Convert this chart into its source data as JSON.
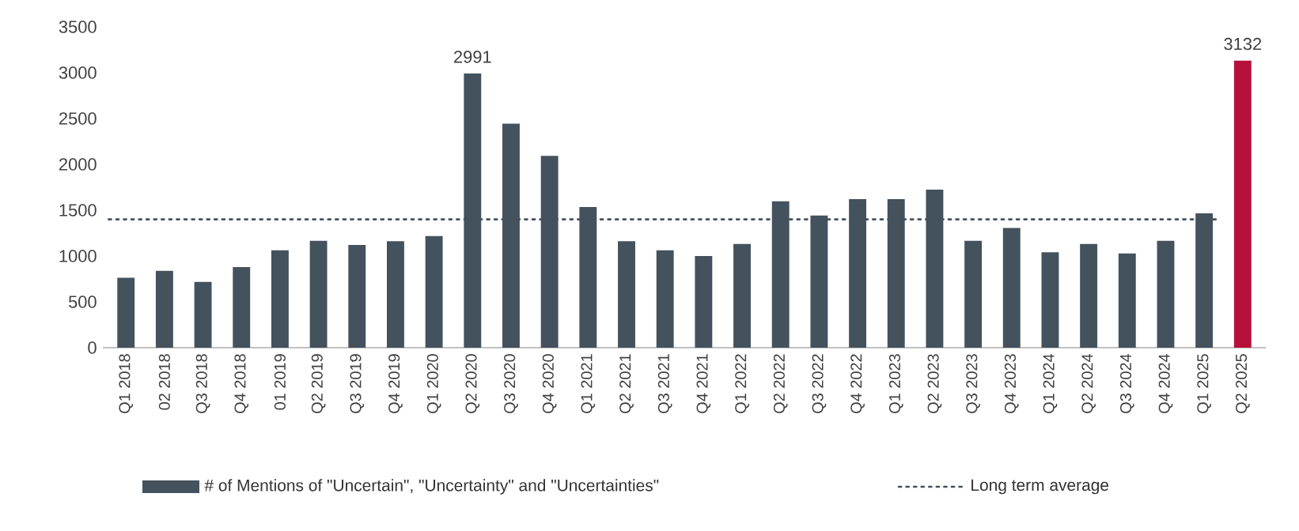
{
  "chart_data": {
    "type": "bar",
    "categories": [
      "Q1 2018",
      "02 2018",
      "Q3 2018",
      "Q4 2018",
      "01 2019",
      "Q2 2019",
      "Q3 2019",
      "Q4 2019",
      "Q1 2020",
      "Q2 2020",
      "Q3 2020",
      "Q4 2020",
      "Q1 2021",
      "Q2 2021",
      "Q3 2021",
      "Q4 2021",
      "Q1 2022",
      "Q2 2022",
      "Q3 2022",
      "Q4 2022",
      "Q1 2023",
      "Q2 2023",
      "Q3 2023",
      "Q4 2023",
      "Q1 2024",
      "Q2 2024",
      "Q3 2024",
      "Q4 2024",
      "Q1 2025",
      "Q2 2025"
    ],
    "series": [
      {
        "name": "# of Mentions of \"Uncertain\", \"Uncertainty\" and \"Uncertainties\"",
        "color": "#44525e",
        "colors": [
          "#44525e",
          "#44525e",
          "#44525e",
          "#44525e",
          "#44525e",
          "#44525e",
          "#44525e",
          "#44525e",
          "#44525e",
          "#44525e",
          "#44525e",
          "#44525e",
          "#44525e",
          "#44525e",
          "#44525e",
          "#44525e",
          "#44525e",
          "#44525e",
          "#44525e",
          "#44525e",
          "#44525e",
          "#44525e",
          "#44525e",
          "#44525e",
          "#44525e",
          "#44525e",
          "#44525e",
          "#44525e",
          "#44525e",
          "#b5103c"
        ],
        "values": [
          764,
          839,
          718,
          879,
          1063,
          1167,
          1121,
          1161,
          1218,
          2991,
          2443,
          2092,
          1534,
          1161,
          1063,
          1000,
          1132,
          1598,
          1442,
          1621,
          1621,
          1724,
          1167,
          1305,
          1040,
          1132,
          1029,
          1167,
          1466,
          3132
        ],
        "value_labels": [
          null,
          null,
          null,
          null,
          null,
          null,
          null,
          null,
          null,
          "2991",
          null,
          null,
          null,
          null,
          null,
          null,
          null,
          null,
          null,
          null,
          null,
          null,
          null,
          null,
          null,
          null,
          null,
          null,
          null,
          "3132"
        ]
      }
    ],
    "ylim": [
      0,
      3500
    ],
    "yticks": [
      0,
      500,
      1000,
      1500,
      2000,
      2500,
      3000,
      3500
    ],
    "grid": false,
    "legend": "bottom",
    "ref_lines": [
      {
        "axis": "y",
        "value": 1400,
        "label": "Long term average",
        "color": "#44525e",
        "line_style": "dotted"
      }
    ]
  }
}
